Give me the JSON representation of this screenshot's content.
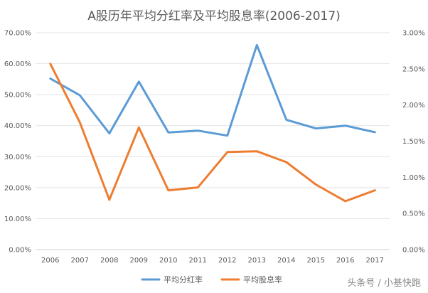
{
  "chart_data": {
    "type": "line",
    "title": "A股历年平均分红率及平均股息率(2006-2017)",
    "categories": [
      "2006",
      "2007",
      "2008",
      "2009",
      "2010",
      "2011",
      "2012",
      "2013",
      "2014",
      "2015",
      "2016",
      "2017"
    ],
    "y_left": {
      "ticks": [
        "0.00%",
        "10.00%",
        "20.00%",
        "30.00%",
        "40.00%",
        "50.00%",
        "60.00%",
        "70.00%"
      ],
      "lim": [
        0,
        70
      ]
    },
    "y_right": {
      "ticks": [
        "0.00%",
        "0.50%",
        "1.00%",
        "1.50%",
        "2.00%",
        "2.50%",
        "3.00%"
      ],
      "lim": [
        0,
        3
      ]
    },
    "grid": true,
    "legend_position": "bottom",
    "series": [
      {
        "name": "平均分红率",
        "axis": "left",
        "color": "#5b9bd5",
        "values": [
          55.2,
          49.8,
          37.5,
          54.2,
          37.8,
          38.4,
          36.8,
          66.0,
          41.9,
          39.1,
          40.0,
          37.9
        ]
      },
      {
        "name": "平均股息率",
        "axis": "right",
        "color": "#ed7d31",
        "values": [
          2.57,
          1.76,
          0.69,
          1.69,
          0.82,
          0.86,
          1.35,
          1.36,
          1.21,
          0.9,
          0.67,
          0.82
        ]
      }
    ]
  },
  "watermark": "头条号 / 小基快跑"
}
